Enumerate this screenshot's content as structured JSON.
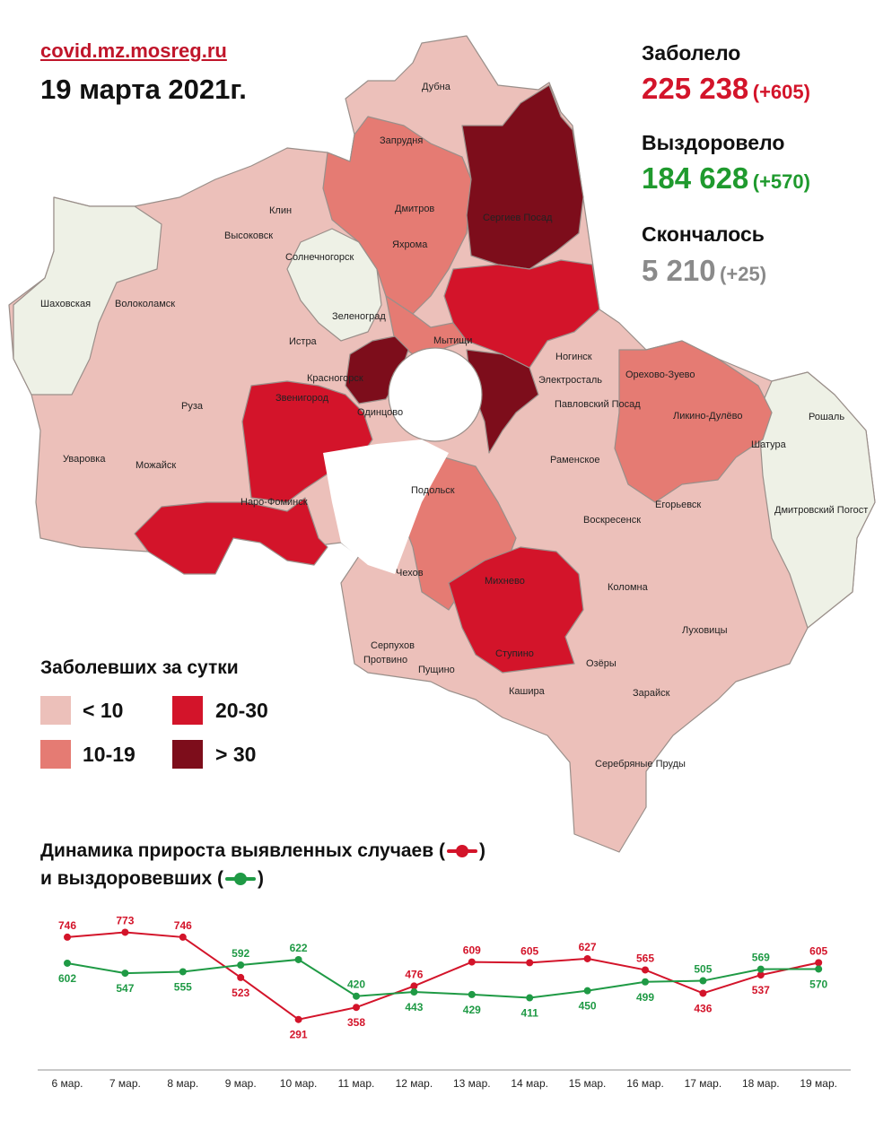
{
  "header": {
    "source": "covid.mz.mosreg.ru",
    "date": "19 марта 2021г."
  },
  "stats": {
    "sick_label": "Заболело",
    "sick_value": "225 238",
    "sick_delta": "(+605)",
    "recovered_label": "Выздоровело",
    "recovered_value": "184 628",
    "recovered_delta": "(+570)",
    "dead_label": "Скончалось",
    "dead_value": "5 210",
    "dead_delta": "(+25)"
  },
  "colors": {
    "lt10": "#ecc0ba",
    "r10_19": "#e57b73",
    "r20_30": "#d3142a",
    "gt30": "#7d0d1b",
    "neutral": "#eef1e6",
    "red_series": "#d3142a",
    "green_series": "#1f9a45"
  },
  "legend": {
    "title": "Заболевших за сутки",
    "items": [
      {
        "label": "< 10",
        "color": "#ecc0ba"
      },
      {
        "label": "20-30",
        "color": "#d3142a"
      },
      {
        "label": "10-19",
        "color": "#e57b73"
      },
      {
        "label": "> 30",
        "color": "#7d0d1b"
      }
    ]
  },
  "map_labels": [
    "Дубна",
    "Запрудня",
    "Клин",
    "Дмитров",
    "Сергиев Посад",
    "Высоковск",
    "Яхрома",
    "Солнечногорск",
    "Шаховская",
    "Волоколамск",
    "Зеленоград",
    "Мытищи",
    "Истра",
    "Ногинск",
    "Электросталь",
    "Орехово-Зуево",
    "Красногорск",
    "Звенигород",
    "Павловский Посад",
    "Одинцово",
    "Рошаль",
    "Руза",
    "Ликино-Дулёво",
    "Шатура",
    "Уваровка",
    "Можайск",
    "Раменское",
    "Подольск",
    "Егорьевск",
    "Наро-Фоминск",
    "Воскресенск",
    "Дмитровский Погост",
    "Чехов",
    "Михнево",
    "Коломна",
    "Серпухов",
    "Луховицы",
    "Протвино",
    "Пущино",
    "Ступино",
    "Озёры",
    "Кашира",
    "Зарайск",
    "Серебряные Пруды"
  ],
  "dynamics": {
    "title_line1": "Динамика прироста выявленных случаев (",
    "title_line1_end": ")",
    "title_line2": "и выздоровевших (",
    "title_line2_end": ")"
  },
  "chart_data": {
    "type": "line",
    "x": [
      "6 мар.",
      "7 мар.",
      "8 мар.",
      "9 мар.",
      "10 мар.",
      "11 мар.",
      "12 мар.",
      "13 мар.",
      "14 мар.",
      "15 мар.",
      "16 мар.",
      "17 мар.",
      "18 мар.",
      "19 мар."
    ],
    "series": [
      {
        "color": "#d3142a",
        "values": [
          746,
          773,
          746,
          523,
          291,
          358,
          476,
          609,
          605,
          627,
          565,
          436,
          537,
          605
        ]
      },
      {
        "color": "#1f9a45",
        "values": [
          602,
          547,
          555,
          592,
          622,
          420,
          443,
          429,
          411,
          450,
          499,
          505,
          569,
          570
        ]
      }
    ],
    "ylim": [
      250,
      820
    ],
    "grid": false,
    "legend": "none",
    "title": "",
    "xlabel": "",
    "ylabel": ""
  }
}
